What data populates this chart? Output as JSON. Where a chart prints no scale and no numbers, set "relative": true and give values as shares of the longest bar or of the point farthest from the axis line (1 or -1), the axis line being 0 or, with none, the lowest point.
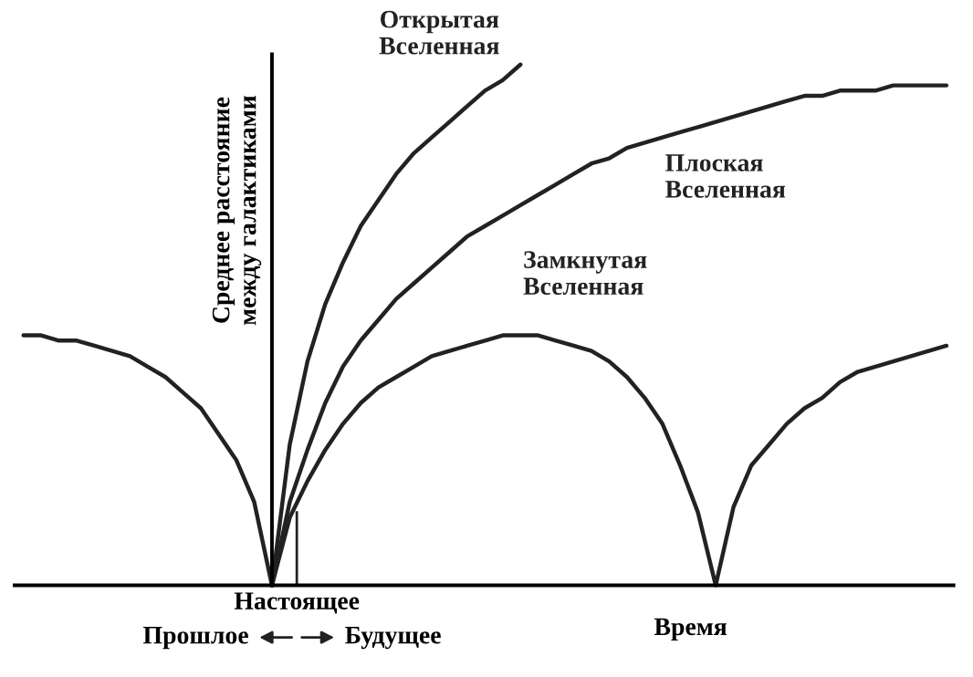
{
  "chart_data": {
    "type": "line",
    "relative": true,
    "ylabel": "Среднее расстояние\nмежду галактиками",
    "xlabel": "Время",
    "legend": false,
    "marker": "none",
    "line_style": "solid",
    "annotations": [
      "Настоящее",
      "Прошлое",
      "Будущее"
    ],
    "categories": [
      null,
      null,
      null,
      null,
      null,
      null,
      null,
      null,
      null,
      null,
      null,
      null,
      null,
      null,
      null,
      null,
      null,
      null,
      null,
      null,
      null,
      null,
      null,
      null,
      null,
      null,
      null,
      null,
      null,
      null,
      null,
      null,
      null,
      null,
      null,
      null,
      null,
      null,
      null,
      null,
      null,
      null,
      null,
      null,
      null,
      null,
      null,
      null,
      null,
      null,
      null,
      null,
      null
    ],
    "series": [
      {
        "name": "Открытая\nВселенная",
        "color": "#222222",
        "values": [
          null,
          null,
          null,
          null,
          null,
          null,
          null,
          null,
          null,
          null,
          null,
          null,
          null,
          null,
          0,
          0.27,
          0.43,
          0.54,
          0.62,
          0.69,
          0.74,
          0.79,
          0.83,
          0.86,
          0.89,
          0.92,
          0.95,
          0.97,
          1.0,
          null,
          null,
          null,
          null,
          null,
          null,
          null,
          null,
          null,
          null,
          null,
          null,
          null,
          null,
          null,
          null,
          null,
          null,
          null,
          null,
          null,
          null,
          null,
          null
        ]
      },
      {
        "name": "Плоская\nВселенная",
        "color": "#222222",
        "values": [
          null,
          null,
          null,
          null,
          null,
          null,
          null,
          null,
          null,
          null,
          null,
          null,
          null,
          null,
          0,
          0.16,
          0.26,
          0.35,
          0.42,
          0.47,
          0.51,
          0.55,
          0.58,
          0.61,
          0.64,
          0.67,
          0.69,
          0.71,
          0.73,
          0.75,
          0.77,
          0.79,
          0.81,
          0.82,
          0.84,
          0.85,
          0.86,
          0.87,
          0.88,
          0.89,
          0.9,
          0.91,
          0.92,
          0.93,
          0.94,
          0.94,
          0.95,
          0.95,
          0.95,
          0.96,
          0.96,
          0.96,
          0.96
        ]
      },
      {
        "name": "Замкнутая\nВселенная",
        "color": "#222222",
        "values": [
          0.48,
          0.48,
          0.47,
          0.47,
          0.46,
          0.45,
          0.44,
          0.42,
          0.4,
          0.37,
          0.34,
          0.29,
          0.24,
          0.16,
          0,
          0.13,
          0.2,
          0.26,
          0.31,
          0.35,
          0.38,
          0.4,
          0.42,
          0.44,
          0.45,
          0.46,
          0.47,
          0.48,
          0.48,
          0.48,
          0.47,
          0.46,
          0.45,
          0.43,
          0.4,
          0.36,
          0.31,
          0.23,
          0.14,
          0,
          0.15,
          0.23,
          0.27,
          0.31,
          0.34,
          0.36,
          0.39,
          0.41,
          0.42,
          0.43,
          0.44,
          0.45,
          0.46
        ]
      }
    ]
  }
}
